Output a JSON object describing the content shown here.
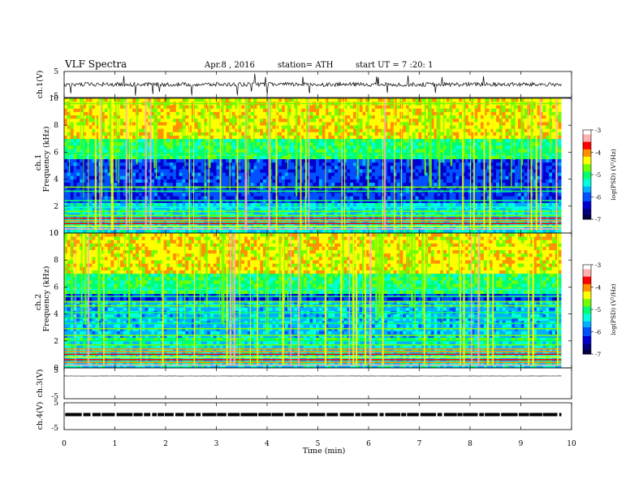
{
  "header": {
    "title": "VLF  Spectra",
    "date": "Apr.8  , 2016",
    "station": "station= ATH",
    "start": "start  UT  =   7  :20:  1"
  },
  "colors": {
    "palette": [
      "#000040",
      "#00007f",
      "#0000d0",
      "#0050ff",
      "#00b0ff",
      "#00ffe0",
      "#00ff70",
      "#70ff00",
      "#ffff00",
      "#ff9000",
      "#ff0000",
      "#ffb0b0",
      "#ffffff"
    ]
  },
  "chart_data": [
    {
      "type": "line",
      "panel": "ch1-voltage",
      "ylabel": "ch.1(V)",
      "yticks": [
        "5",
        "-5"
      ],
      "ylim": [
        -5,
        5
      ],
      "mean_value": 0,
      "x_range_min": [
        0,
        9.8
      ]
    },
    {
      "type": "heatmap",
      "panel": "ch1-spectrogram",
      "ylabel_channel": "ch.1",
      "ylabel": "Frequency  (kHz)",
      "ylim": [
        0,
        10
      ],
      "yticks": [
        "0",
        "2",
        "4",
        "6",
        "8",
        "10"
      ],
      "x_range_min": [
        0,
        9.8
      ],
      "colorbar": {
        "label": "log(PSD) (V²/Hz)",
        "range": [
          -7,
          -3
        ],
        "ticks": [
          "-3",
          "-4",
          "-5",
          "-6",
          "-7"
        ]
      }
    },
    {
      "type": "heatmap",
      "panel": "ch2-spectrogram",
      "ylabel_channel": "ch.2",
      "ylabel": "Frequency  (kHz)",
      "ylim": [
        0,
        10
      ],
      "yticks": [
        "0",
        "2",
        "4",
        "6",
        "8",
        "10"
      ],
      "x_range_min": [
        0,
        9.8
      ],
      "colorbar": {
        "label": "log(PSD) (V²/Hz)",
        "range": [
          -7,
          -3
        ],
        "ticks": [
          "-3",
          "-4",
          "-5",
          "-6",
          "-7"
        ]
      }
    },
    {
      "type": "line",
      "panel": "ch3-voltage",
      "ylabel": "ch.3(V)",
      "yticks": [
        "5",
        "-5"
      ],
      "ylim": [
        -5,
        5
      ],
      "mean_value": 0,
      "x_range_min": [
        0,
        9.8
      ]
    },
    {
      "type": "line",
      "panel": "ch4-voltage",
      "ylabel": "ch.4(V)",
      "yticks": [
        "5",
        "-5"
      ],
      "ylim": [
        -5,
        5
      ],
      "mean_value": 0,
      "x_range_min": [
        0,
        9.8
      ]
    }
  ],
  "xaxis": {
    "label": "Time  (min)",
    "ticks": [
      "0",
      "1",
      "2",
      "3",
      "4",
      "5",
      "6",
      "7",
      "8",
      "9",
      "10"
    ],
    "range": [
      0,
      10
    ]
  }
}
